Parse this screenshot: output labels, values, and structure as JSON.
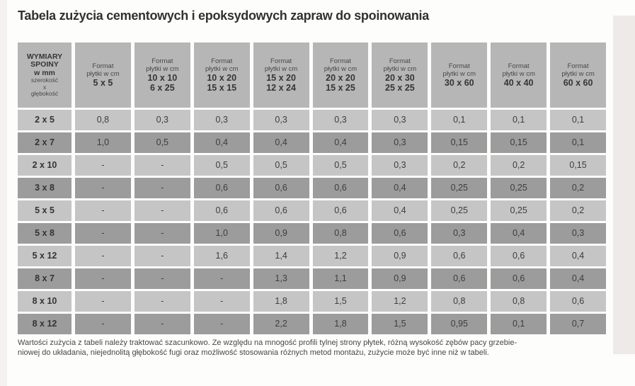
{
  "page": {
    "title": "Tabela zużycia cementowych i epoksydowych zapraw do spoinowania",
    "footnote_line1": "Wartości zużycia z tabeli należy traktować szacunkowo. Ze względu na mnogość profili tylnej strony płytek, różną wysokość zębów pacy grzebie-",
    "footnote_line2": "niowej do układania, niejednolitą głębokość fugi oraz możliwość stosowania różnych metod montażu, zużycie może być inne niż w tabeli."
  },
  "table": {
    "corner_header": {
      "title_lines": [
        "WYMIARY",
        "SPOINY",
        "w mm"
      ],
      "subtitle_lines": [
        "szerokość",
        "x",
        "głębokość"
      ]
    },
    "format_label_lines": [
      "Format",
      "płytki w cm"
    ],
    "column_headers": [
      {
        "sizes": [
          "5 x 5"
        ]
      },
      {
        "sizes": [
          "10 x 10",
          "6 x 25"
        ]
      },
      {
        "sizes": [
          "10 x 20",
          "15 x 15"
        ]
      },
      {
        "sizes": [
          "15 x 20",
          "12 x 24"
        ]
      },
      {
        "sizes": [
          "20 x 20",
          "15 x 25"
        ]
      },
      {
        "sizes": [
          "20 x 30",
          "25 x 25"
        ]
      },
      {
        "sizes": [
          "30 x 60"
        ]
      },
      {
        "sizes": [
          "40 x 40"
        ]
      },
      {
        "sizes": [
          "60 x 60"
        ]
      }
    ],
    "rows": [
      {
        "joint": "2 x 5",
        "values": [
          "0,8",
          "0,3",
          "0,3",
          "0,3",
          "0,3",
          "0,3",
          "0,1",
          "0,1",
          "0,1"
        ]
      },
      {
        "joint": "2 x 7",
        "values": [
          "1,0",
          "0,5",
          "0,4",
          "0,4",
          "0,4",
          "0,3",
          "0,15",
          "0,15",
          "0,1"
        ]
      },
      {
        "joint": "2 x 10",
        "values": [
          "-",
          "-",
          "0,5",
          "0,5",
          "0,5",
          "0,3",
          "0,2",
          "0,2",
          "0,15"
        ]
      },
      {
        "joint": "3 x 8",
        "values": [
          "-",
          "-",
          "0,6",
          "0,6",
          "0,6",
          "0,4",
          "0,25",
          "0,25",
          "0,2"
        ]
      },
      {
        "joint": "5 x 5",
        "values": [
          "-",
          "-",
          "0,6",
          "0,6",
          "0,6",
          "0,4",
          "0,25",
          "0,25",
          "0,2"
        ]
      },
      {
        "joint": "5 x 8",
        "values": [
          "-",
          "-",
          "1,0",
          "0,9",
          "0,8",
          "0,6",
          "0,3",
          "0,4",
          "0,3"
        ]
      },
      {
        "joint": "5 x 12",
        "values": [
          "-",
          "-",
          "1,6",
          "1,4",
          "1,2",
          "0,9",
          "0,6",
          "0,6",
          "0,4"
        ]
      },
      {
        "joint": "8 x 7",
        "values": [
          "-",
          "-",
          "-",
          "1,3",
          "1,1",
          "0,9",
          "0,6",
          "0,6",
          "0,4"
        ]
      },
      {
        "joint": "8 x 10",
        "values": [
          "-",
          "-",
          "-",
          "1,8",
          "1,5",
          "1,2",
          "0,8",
          "0,8",
          "0,6"
        ]
      },
      {
        "joint": "8 x 12",
        "values": [
          "-",
          "-",
          "-",
          "2,2",
          "1,8",
          "1,5",
          "0,95",
          "0,1",
          "0,7"
        ]
      }
    ]
  },
  "colors": {
    "header_bg": "#b6b6b6",
    "row_light": "#c5c5c5",
    "row_dark": "#9c9c9c",
    "text": "#3d3d3d",
    "page_bg": "#fdfdfc",
    "edge_strip": "#edeae7"
  }
}
